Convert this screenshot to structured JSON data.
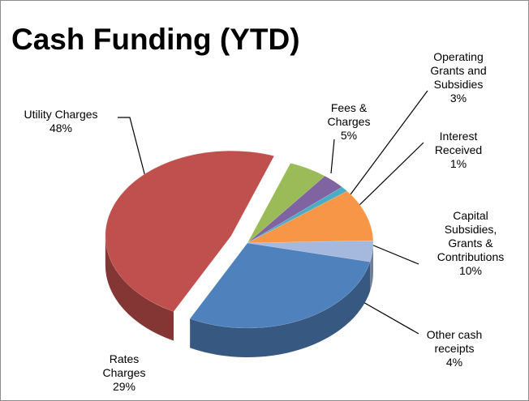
{
  "chart_data": {
    "type": "pie",
    "title": "Cash Funding (YTD)",
    "categories": [
      "Fees & Charges",
      "Operating Grants and Subsidies",
      "Interest Received",
      "Capital Subsidies, Grants & Contributions",
      "Other cash receipts",
      "Rates Charges",
      "Utility Charges"
    ],
    "values": [
      5,
      3,
      1,
      10,
      4,
      29,
      48
    ],
    "value_labels": [
      "5%",
      "3%",
      "1%",
      "10%",
      "4%",
      "29%",
      "48%"
    ],
    "colors": [
      "#9bbb59",
      "#8064a2",
      "#4bacc6",
      "#f79646",
      "#a5b9de",
      "#4f81bd",
      "#c0504d"
    ]
  }
}
